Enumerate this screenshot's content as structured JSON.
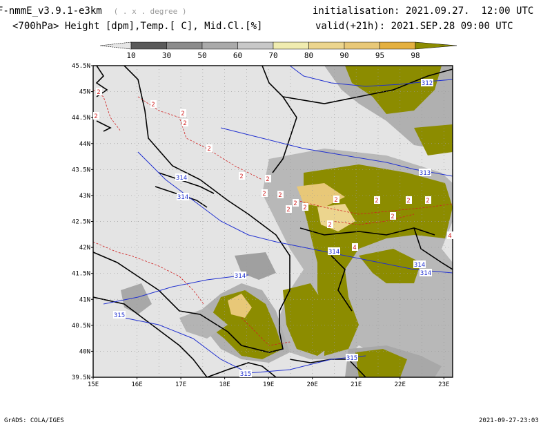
{
  "header": {
    "model": "F-nmmE_v3.9.1-e3km",
    "resolution_note": "( . x . degree )",
    "fields": "<700hPa> Height [dpm],Temp.[ C], Mid.Cl.[%]",
    "init_label": "initialisation:",
    "init_time": "2021.09.27.  12:00 UTC",
    "valid_label": "valid(+21h):",
    "valid_time": "2021.SEP.28 09:00 UTC"
  },
  "colorbar": {
    "ticks": [
      "10",
      "30",
      "50",
      "60",
      "70",
      "80",
      "90",
      "95",
      "98"
    ],
    "colors": [
      "#5a5a5a",
      "#8c8c8c",
      "#aaaaaa",
      "#c8c8c8",
      "#f0ecb0",
      "#ecd58e",
      "#e8c878",
      "#e4b040",
      "#8c8c00"
    ]
  },
  "map": {
    "lat_labels": [
      "45.5N",
      "45N",
      "44.5N",
      "44N",
      "43.5N",
      "43N",
      "42.5N",
      "42N",
      "41.5N",
      "41N",
      "40.5N",
      "40N",
      "39.5N"
    ],
    "lon_labels": [
      "15E",
      "16E",
      "17E",
      "18E",
      "19E",
      "20E",
      "21E",
      "22E",
      "23E"
    ],
    "height_contours": [
      "312",
      "313",
      "314",
      "314",
      "314",
      "314",
      "314",
      "314",
      "315",
      "315",
      "315"
    ],
    "temp_labels": [
      "2",
      "2",
      "2",
      "2",
      "2",
      "2",
      "2",
      "2",
      "2",
      "2",
      "2",
      "2",
      "2",
      "2",
      "2",
      "2",
      "2",
      "2",
      "2",
      "4",
      "4"
    ],
    "colors": {
      "background": "#e4e4e4",
      "high_cloud": "#8c8c00",
      "contour_height": "#2030d0",
      "contour_temp": "#d02020",
      "coast": "#000000"
    }
  },
  "footer": {
    "credit": "GrADS: COLA/IGES",
    "timestamp": "2021-09-27-23:03"
  }
}
